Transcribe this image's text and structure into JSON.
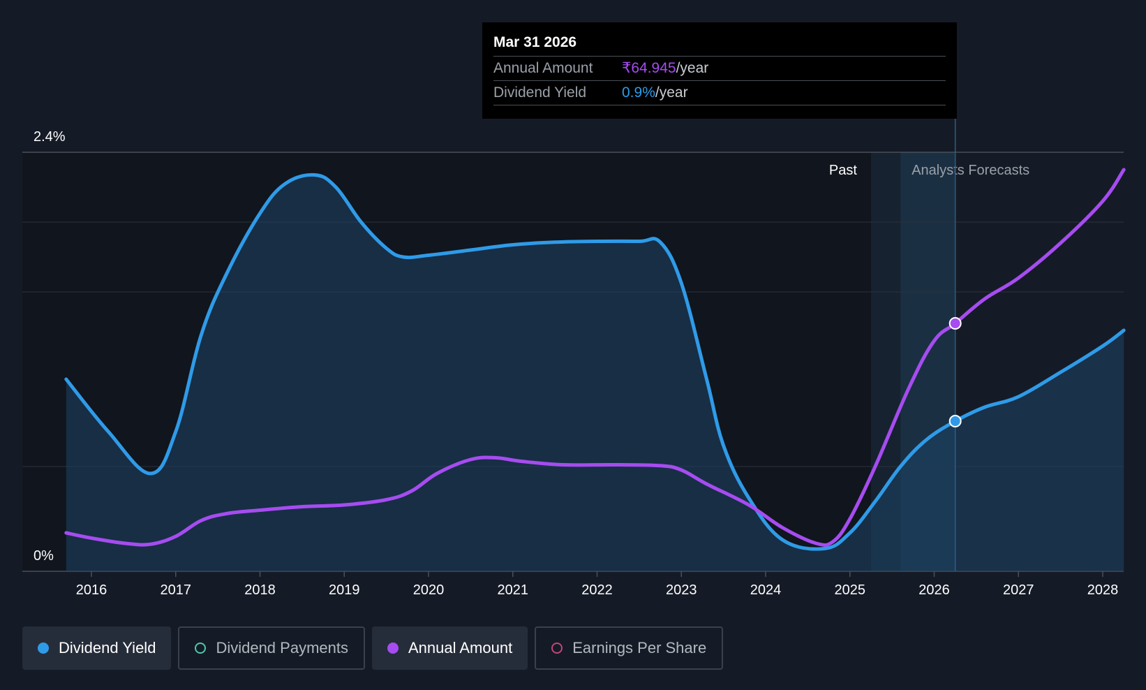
{
  "chart_data": {
    "type": "line",
    "y_axis": {
      "min": 0,
      "max": 2.4,
      "unit": "%",
      "labels": [
        "2.4%",
        "0%"
      ],
      "gridlines": [
        0,
        0.6,
        1.6,
        2.0,
        2.4
      ]
    },
    "x_axis": {
      "ticks": [
        "2016",
        "2017",
        "2018",
        "2019",
        "2020",
        "2021",
        "2022",
        "2023",
        "2024",
        "2025",
        "2026",
        "2027",
        "2028"
      ],
      "range": [
        2015.5,
        2028.25
      ]
    },
    "regions": {
      "past_label": "Past",
      "forecast_label": "Analysts Forecasts",
      "past_end": 2025.25,
      "forecast_start": 2025.6,
      "highlight_date": 2026.25
    },
    "series": [
      {
        "name": "Dividend Yield",
        "color": "#2f9be8",
        "points": [
          [
            2015.7,
            1.1
          ],
          [
            2016.2,
            0.8
          ],
          [
            2016.7,
            0.56
          ],
          [
            2017.0,
            0.8
          ],
          [
            2017.3,
            1.35
          ],
          [
            2017.6,
            1.7
          ],
          [
            2018.0,
            2.05
          ],
          [
            2018.3,
            2.22
          ],
          [
            2018.65,
            2.27
          ],
          [
            2018.9,
            2.2
          ],
          [
            2019.2,
            2.0
          ],
          [
            2019.5,
            1.85
          ],
          [
            2019.7,
            1.8
          ],
          [
            2020.0,
            1.81
          ],
          [
            2020.5,
            1.84
          ],
          [
            2021.0,
            1.87
          ],
          [
            2021.5,
            1.885
          ],
          [
            2022.0,
            1.89
          ],
          [
            2022.5,
            1.89
          ],
          [
            2022.75,
            1.885
          ],
          [
            2023.0,
            1.65
          ],
          [
            2023.3,
            1.1
          ],
          [
            2023.5,
            0.72
          ],
          [
            2023.8,
            0.42
          ],
          [
            2024.2,
            0.18
          ],
          [
            2024.7,
            0.13
          ],
          [
            2025.0,
            0.22
          ],
          [
            2025.3,
            0.4
          ],
          [
            2025.6,
            0.6
          ],
          [
            2025.9,
            0.75
          ],
          [
            2026.25,
            0.86
          ],
          [
            2026.6,
            0.94
          ],
          [
            2027.0,
            1.0
          ],
          [
            2027.5,
            1.14
          ],
          [
            2028.0,
            1.29
          ],
          [
            2028.25,
            1.38
          ]
        ]
      },
      {
        "name": "Annual Amount",
        "color": "#a64cf0",
        "points": [
          [
            2015.7,
            0.22
          ],
          [
            2016.0,
            0.19
          ],
          [
            2016.4,
            0.16
          ],
          [
            2016.7,
            0.155
          ],
          [
            2017.0,
            0.2
          ],
          [
            2017.3,
            0.29
          ],
          [
            2017.6,
            0.33
          ],
          [
            2018.0,
            0.35
          ],
          [
            2018.5,
            0.37
          ],
          [
            2019.0,
            0.38
          ],
          [
            2019.5,
            0.41
          ],
          [
            2019.8,
            0.46
          ],
          [
            2020.1,
            0.56
          ],
          [
            2020.5,
            0.64
          ],
          [
            2020.8,
            0.65
          ],
          [
            2021.1,
            0.63
          ],
          [
            2021.6,
            0.61
          ],
          [
            2022.2,
            0.61
          ],
          [
            2022.75,
            0.605
          ],
          [
            2023.0,
            0.58
          ],
          [
            2023.3,
            0.5
          ],
          [
            2023.8,
            0.38
          ],
          [
            2024.2,
            0.25
          ],
          [
            2024.6,
            0.16
          ],
          [
            2024.8,
            0.17
          ],
          [
            2025.0,
            0.3
          ],
          [
            2025.3,
            0.6
          ],
          [
            2025.7,
            1.05
          ],
          [
            2026.0,
            1.32
          ],
          [
            2026.25,
            1.42
          ],
          [
            2026.6,
            1.56
          ],
          [
            2027.0,
            1.68
          ],
          [
            2027.5,
            1.88
          ],
          [
            2028.0,
            2.12
          ],
          [
            2028.25,
            2.3
          ]
        ]
      }
    ]
  },
  "tooltip": {
    "date": "Mar 31 2026",
    "amount_label": "Annual Amount",
    "amount_value": "₹64.945",
    "amount_unit": "/year",
    "yield_label": "Dividend Yield",
    "yield_value": "0.9%",
    "yield_unit": "/year"
  },
  "legend": [
    {
      "label": "Dividend Yield",
      "color": "#2f9be8",
      "active": true,
      "icon": "filled-dot"
    },
    {
      "label": "Dividend Payments",
      "color": "#4ec9b0",
      "active": false,
      "icon": "hollow-dot"
    },
    {
      "label": "Annual Amount",
      "color": "#a64cf0",
      "active": true,
      "icon": "filled-dot"
    },
    {
      "label": "Earnings Per Share",
      "color": "#c2457a",
      "active": false,
      "icon": "hollow-dot"
    }
  ]
}
